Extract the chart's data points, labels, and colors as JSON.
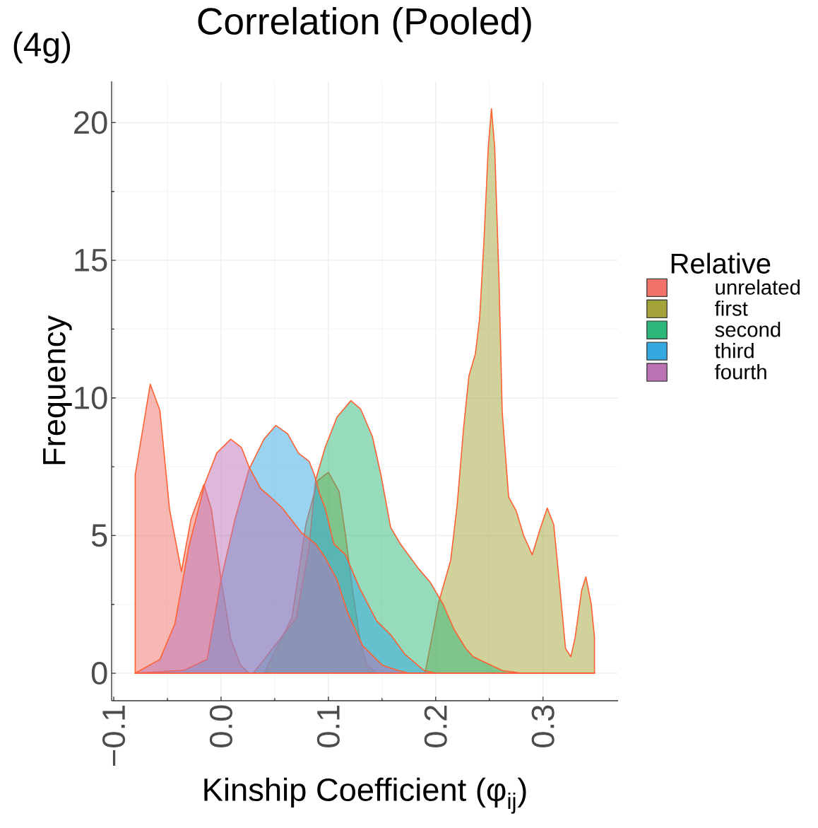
{
  "chart_data": {
    "type": "area",
    "title": "Correlation (Pooled)",
    "annotations": [
      "(4g)"
    ],
    "xlabel": "Kinship Coefficient (φ$_{ij}$)",
    "ylabel": "Frequency",
    "legend_title": "Relative",
    "legend": "right",
    "grid": true,
    "xlim": [
      -0.102,
      0.37
    ],
    "ylim": [
      -1,
      21.5
    ],
    "xticks": [
      {
        "value": -0.1,
        "label": "−0.1"
      },
      {
        "value": 0,
        "label": "0.0"
      },
      {
        "value": 0.1,
        "label": "0.1"
      },
      {
        "value": 0.2,
        "label": "0.2"
      },
      {
        "value": 0.3,
        "label": "0.3"
      }
    ],
    "yticks": [
      0,
      5,
      10,
      15,
      20
    ],
    "series": [
      {
        "name": "unrelated",
        "color": "#f07268",
        "x": [
          -0.08,
          -0.066,
          -0.057,
          -0.048,
          -0.037,
          -0.028,
          -0.016,
          -0.009,
          0.0,
          0.009,
          0.018,
          0.026,
          0.348
        ],
        "values": [
          7.2,
          10.5,
          9.55,
          5.95,
          3.7,
          5.6,
          6.85,
          5.95,
          3.4,
          1.24,
          0.3,
          0,
          0
        ]
      },
      {
        "name": "first",
        "color": "#a3a33a",
        "x": [
          -0.08,
          0.04,
          0.066,
          0.079,
          0.09,
          0.1,
          0.11,
          0.116,
          0.123,
          0.13,
          0.136,
          0.145,
          0.19,
          0.203,
          0.214,
          0.22,
          0.226,
          0.231,
          0.237,
          0.241,
          0.245,
          0.249,
          0.252,
          0.255,
          0.259,
          0.262,
          0.268,
          0.275,
          0.282,
          0.29,
          0.297,
          0.304,
          0.31,
          0.315,
          0.321,
          0.326,
          0.33,
          0.336,
          0.34,
          0.345,
          0.348
        ],
        "values": [
          0,
          0,
          2.0,
          5.4,
          7.0,
          7.3,
          6.6,
          5.0,
          2.9,
          1.1,
          0.3,
          0,
          0,
          2.6,
          4.1,
          6.1,
          8.9,
          10.8,
          11.6,
          12.9,
          15.7,
          19.1,
          20.5,
          19.1,
          14.3,
          9.5,
          6.4,
          5.9,
          5.0,
          4.3,
          5.2,
          6.0,
          5.4,
          3.4,
          0.9,
          0.6,
          1.3,
          3.0,
          3.5,
          2.5,
          1.3
        ]
      },
      {
        "name": "second",
        "color": "#2db87a",
        "x": [
          -0.08,
          0.03,
          0.07,
          0.082,
          0.088,
          0.097,
          0.108,
          0.121,
          0.13,
          0.141,
          0.149,
          0.158,
          0.167,
          0.184,
          0.195,
          0.207,
          0.217,
          0.228,
          0.235,
          0.262,
          0.28,
          0.348
        ],
        "values": [
          0,
          0,
          2.0,
          4.6,
          7.0,
          8.2,
          9.3,
          9.9,
          9.6,
          8.6,
          7.2,
          5.3,
          4.7,
          3.8,
          3.3,
          2.5,
          1.6,
          0.9,
          0.6,
          0.1,
          0,
          0
        ]
      },
      {
        "name": "third",
        "color": "#35a8e0",
        "x": [
          -0.08,
          -0.035,
          -0.013,
          0.0,
          0.013,
          0.026,
          0.04,
          0.051,
          0.062,
          0.072,
          0.082,
          0.087,
          0.092,
          0.097,
          0.105,
          0.116,
          0.129,
          0.145,
          0.158,
          0.171,
          0.189,
          0.2,
          0.348
        ],
        "values": [
          0,
          0.1,
          0.5,
          3.4,
          5.6,
          7.4,
          8.5,
          9.0,
          8.7,
          8.0,
          7.7,
          7.2,
          6.5,
          6.0,
          4.7,
          4.3,
          3.1,
          1.9,
          1.4,
          0.7,
          0.1,
          0,
          0
        ]
      },
      {
        "name": "fourth",
        "color": "#bb72b5",
        "x": [
          -0.08,
          -0.057,
          -0.043,
          -0.03,
          -0.015,
          -0.004,
          0.009,
          0.019,
          0.026,
          0.037,
          0.049,
          0.057,
          0.075,
          0.088,
          0.097,
          0.108,
          0.118,
          0.132,
          0.15,
          0.165,
          0.175,
          0.348
        ],
        "values": [
          0,
          0.5,
          1.8,
          4.6,
          6.9,
          8.0,
          8.5,
          8.2,
          7.5,
          6.7,
          6.3,
          6.0,
          5.1,
          4.7,
          4.2,
          3.4,
          2.2,
          1.0,
          0.3,
          0.1,
          0,
          0
        ]
      }
    ]
  }
}
